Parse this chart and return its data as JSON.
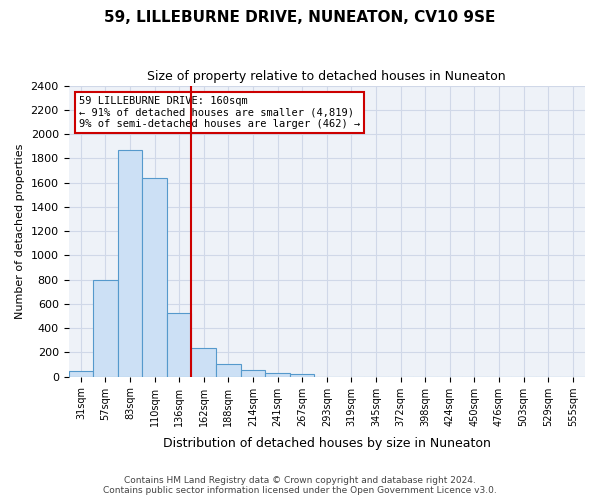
{
  "title": "59, LILLEBURNE DRIVE, NUNEATON, CV10 9SE",
  "subtitle": "Size of property relative to detached houses in Nuneaton",
  "xlabel": "Distribution of detached houses by size in Nuneaton",
  "ylabel": "Number of detached properties",
  "bin_labels": [
    "31sqm",
    "57sqm",
    "83sqm",
    "110sqm",
    "136sqm",
    "162sqm",
    "188sqm",
    "214sqm",
    "241sqm",
    "267sqm",
    "293sqm",
    "319sqm",
    "345sqm",
    "372sqm",
    "398sqm",
    "424sqm",
    "450sqm",
    "476sqm",
    "503sqm",
    "529sqm",
    "555sqm"
  ],
  "bar_values": [
    50,
    795,
    1870,
    1635,
    525,
    235,
    108,
    55,
    30,
    20,
    0,
    0,
    0,
    0,
    0,
    0,
    0,
    0,
    0,
    0,
    0
  ],
  "bar_color": "#cce0f5",
  "bar_edge_color": "#5599cc",
  "vline_x_index": 5,
  "vline_color": "#cc0000",
  "annotation_text": "59 LILLEBURNE DRIVE: 160sqm\n← 91% of detached houses are smaller (4,819)\n9% of semi-detached houses are larger (462) →",
  "annotation_box_color": "#ffffff",
  "annotation_box_edge": "#cc0000",
  "ylim": [
    0,
    2400
  ],
  "yticks": [
    0,
    200,
    400,
    600,
    800,
    1000,
    1200,
    1400,
    1600,
    1800,
    2000,
    2200,
    2400
  ],
  "grid_color": "#d0d8e8",
  "bg_color": "#eef2f8",
  "footer": "Contains HM Land Registry data © Crown copyright and database right 2024.\nContains public sector information licensed under the Open Government Licence v3.0."
}
